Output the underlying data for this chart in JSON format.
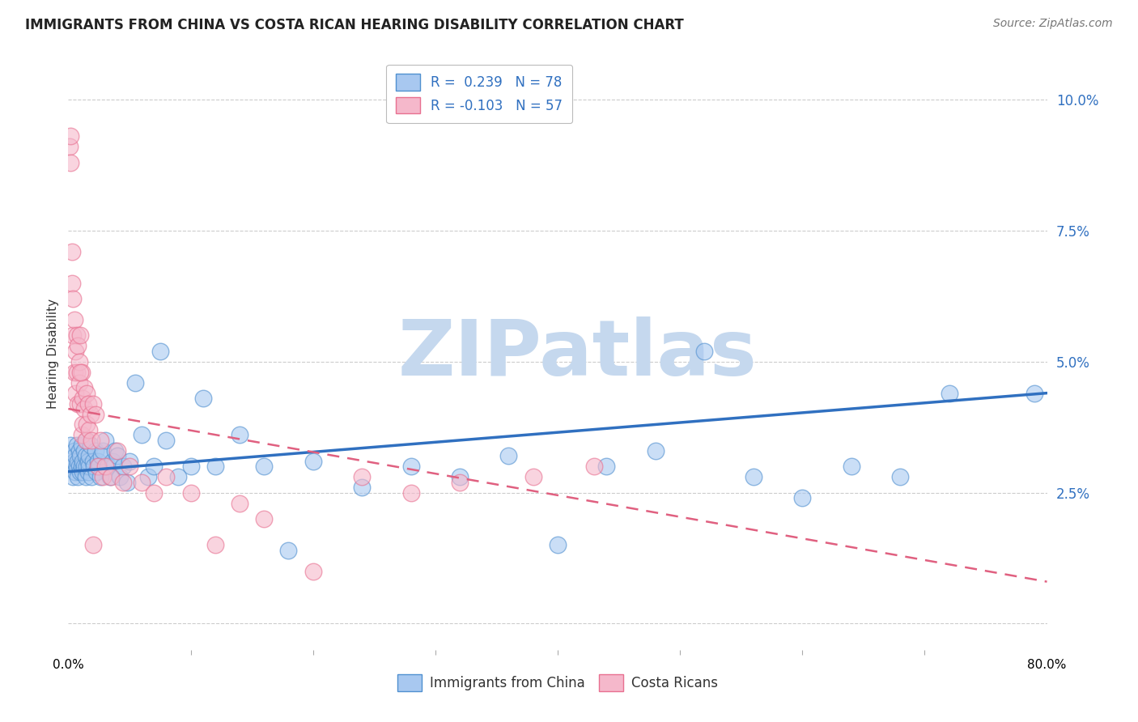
{
  "title": "IMMIGRANTS FROM CHINA VS COSTA RICAN HEARING DISABILITY CORRELATION CHART",
  "source": "Source: ZipAtlas.com",
  "ylabel": "Hearing Disability",
  "yticks": [
    0.0,
    0.025,
    0.05,
    0.075,
    0.1
  ],
  "ytick_labels": [
    "",
    "2.5%",
    "5.0%",
    "7.5%",
    "10.0%"
  ],
  "xlim": [
    0.0,
    0.8
  ],
  "ylim": [
    -0.005,
    0.108
  ],
  "legend_r1": "R =  0.239   N = 78",
  "legend_r2": "R = -0.103   N = 57",
  "color_blue": "#a8c8f0",
  "color_pink": "#f5b8cb",
  "color_blue_dark": "#5090d0",
  "color_pink_dark": "#e87090",
  "color_blue_line": "#3070c0",
  "color_pink_line": "#e06080",
  "watermark": "ZIPatlas",
  "blue_scatter_x": [
    0.002,
    0.003,
    0.004,
    0.005,
    0.005,
    0.006,
    0.006,
    0.007,
    0.007,
    0.008,
    0.008,
    0.009,
    0.009,
    0.01,
    0.01,
    0.011,
    0.011,
    0.012,
    0.012,
    0.013,
    0.013,
    0.014,
    0.014,
    0.015,
    0.015,
    0.016,
    0.016,
    0.017,
    0.017,
    0.018,
    0.019,
    0.02,
    0.021,
    0.022,
    0.023,
    0.024,
    0.025,
    0.026,
    0.027,
    0.028,
    0.03,
    0.032,
    0.034,
    0.036,
    0.038,
    0.04,
    0.042,
    0.045,
    0.048,
    0.05,
    0.055,
    0.06,
    0.065,
    0.07,
    0.075,
    0.08,
    0.09,
    0.1,
    0.11,
    0.12,
    0.14,
    0.16,
    0.18,
    0.2,
    0.24,
    0.28,
    0.32,
    0.36,
    0.4,
    0.44,
    0.48,
    0.52,
    0.56,
    0.6,
    0.64,
    0.68,
    0.72,
    0.79
  ],
  "blue_scatter_y": [
    0.034,
    0.03,
    0.028,
    0.033,
    0.031,
    0.032,
    0.029,
    0.03,
    0.034,
    0.028,
    0.031,
    0.033,
    0.03,
    0.029,
    0.032,
    0.03,
    0.034,
    0.029,
    0.031,
    0.03,
    0.033,
    0.028,
    0.032,
    0.03,
    0.035,
    0.029,
    0.031,
    0.03,
    0.032,
    0.034,
    0.028,
    0.031,
    0.03,
    0.033,
    0.029,
    0.031,
    0.03,
    0.028,
    0.032,
    0.033,
    0.035,
    0.03,
    0.028,
    0.031,
    0.033,
    0.032,
    0.028,
    0.03,
    0.027,
    0.031,
    0.046,
    0.036,
    0.028,
    0.03,
    0.052,
    0.035,
    0.028,
    0.03,
    0.043,
    0.03,
    0.036,
    0.03,
    0.014,
    0.031,
    0.026,
    0.03,
    0.028,
    0.032,
    0.015,
    0.03,
    0.033,
    0.052,
    0.028,
    0.024,
    0.03,
    0.028,
    0.044,
    0.044
  ],
  "pink_scatter_x": [
    0.001,
    0.002,
    0.002,
    0.003,
    0.003,
    0.004,
    0.004,
    0.005,
    0.005,
    0.006,
    0.006,
    0.007,
    0.007,
    0.008,
    0.008,
    0.009,
    0.009,
    0.01,
    0.01,
    0.011,
    0.011,
    0.012,
    0.012,
    0.013,
    0.013,
    0.014,
    0.015,
    0.015,
    0.016,
    0.017,
    0.018,
    0.019,
    0.02,
    0.022,
    0.024,
    0.026,
    0.028,
    0.03,
    0.035,
    0.04,
    0.045,
    0.05,
    0.06,
    0.07,
    0.08,
    0.1,
    0.12,
    0.14,
    0.16,
    0.2,
    0.24,
    0.28,
    0.32,
    0.38,
    0.43,
    0.01,
    0.02
  ],
  "pink_scatter_y": [
    0.091,
    0.093,
    0.088,
    0.071,
    0.065,
    0.055,
    0.062,
    0.048,
    0.058,
    0.052,
    0.044,
    0.048,
    0.055,
    0.042,
    0.053,
    0.05,
    0.046,
    0.042,
    0.055,
    0.036,
    0.048,
    0.043,
    0.038,
    0.045,
    0.041,
    0.035,
    0.044,
    0.038,
    0.042,
    0.037,
    0.04,
    0.035,
    0.042,
    0.04,
    0.03,
    0.035,
    0.028,
    0.03,
    0.028,
    0.033,
    0.027,
    0.03,
    0.027,
    0.025,
    0.028,
    0.025,
    0.015,
    0.023,
    0.02,
    0.01,
    0.028,
    0.025,
    0.027,
    0.028,
    0.03,
    0.048,
    0.015
  ],
  "blue_line_x": [
    0.0,
    0.8
  ],
  "blue_line_y": [
    0.029,
    0.044
  ],
  "pink_line_x": [
    0.0,
    0.8
  ],
  "pink_line_y": [
    0.041,
    0.008
  ],
  "background_color": "#ffffff",
  "grid_color": "#cccccc",
  "title_fontsize": 12,
  "source_fontsize": 10,
  "watermark_color": "#c5d8ee",
  "watermark_fontsize": 70,
  "scatter_size": 220,
  "scatter_alpha": 0.6,
  "scatter_lw": 1.0
}
